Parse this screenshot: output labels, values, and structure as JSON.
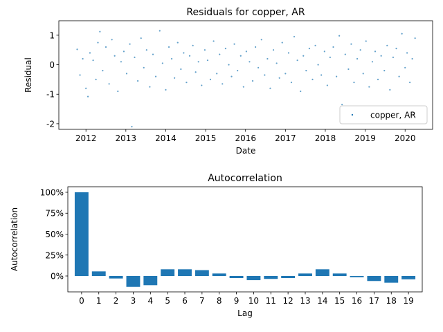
{
  "chart_data": [
    {
      "type": "scatter",
      "title": "Residuals for copper, AR",
      "xlabel": "Date",
      "ylabel": "Residual",
      "xlim": [
        2011.32,
        2020.69
      ],
      "ylim": [
        -2.19,
        1.49
      ],
      "xticks": [
        2012,
        2013,
        2014,
        2015,
        2016,
        2017,
        2018,
        2019,
        2020
      ],
      "yticks": [
        -2,
        -1,
        0,
        1
      ],
      "legend": "lower right",
      "series": [
        {
          "name": "copper, AR",
          "color": "#1f77b4",
          "x": [
            2011.78,
            2011.85,
            2011.92,
            2012.0,
            2012.05,
            2012.1,
            2012.18,
            2012.25,
            2012.3,
            2012.35,
            2012.42,
            2012.5,
            2012.58,
            2012.65,
            2012.72,
            2012.8,
            2012.88,
            2012.95,
            2013.02,
            2013.1,
            2013.15,
            2013.22,
            2013.3,
            2013.38,
            2013.45,
            2013.52,
            2013.6,
            2013.68,
            2013.75,
            2013.85,
            2013.92,
            2014.0,
            2014.08,
            2014.15,
            2014.22,
            2014.3,
            2014.38,
            2014.45,
            2014.52,
            2014.6,
            2014.68,
            2014.75,
            2014.82,
            2014.9,
            2014.98,
            2015.05,
            2015.12,
            2015.2,
            2015.28,
            2015.35,
            2015.42,
            2015.5,
            2015.58,
            2015.65,
            2015.72,
            2015.8,
            2015.88,
            2015.95,
            2016.02,
            2016.1,
            2016.18,
            2016.25,
            2016.32,
            2016.4,
            2016.48,
            2016.55,
            2016.62,
            2016.7,
            2016.78,
            2016.85,
            2016.92,
            2017.0,
            2017.08,
            2017.15,
            2017.22,
            2017.3,
            2017.38,
            2017.45,
            2017.52,
            2017.6,
            2017.68,
            2017.75,
            2017.82,
            2017.9,
            2017.98,
            2018.05,
            2018.12,
            2018.2,
            2018.28,
            2018.35,
            2018.42,
            2018.5,
            2018.58,
            2018.65,
            2018.72,
            2018.8,
            2018.88,
            2018.95,
            2019.02,
            2019.1,
            2019.18,
            2019.25,
            2019.32,
            2019.4,
            2019.48,
            2019.55,
            2019.62,
            2019.7,
            2019.78,
            2019.85,
            2019.92,
            2020.0,
            2020.05,
            2020.12,
            2020.18,
            2020.25
          ],
          "values": [
            0.52,
            -0.35,
            0.2,
            -0.8,
            -1.08,
            0.4,
            0.15,
            -0.5,
            0.75,
            1.12,
            -0.2,
            0.6,
            -0.65,
            0.85,
            0.3,
            -0.9,
            0.1,
            0.45,
            -0.3,
            0.7,
            -2.1,
            0.25,
            -0.55,
            0.9,
            -0.1,
            0.5,
            -0.75,
            0.35,
            -0.4,
            1.15,
            0.05,
            -0.85,
            0.6,
            0.2,
            -0.45,
            0.75,
            -0.15,
            0.4,
            -0.6,
            0.3,
            0.65,
            -0.25,
            0.1,
            -0.7,
            0.5,
            0.15,
            -0.5,
            0.8,
            -0.3,
            0.35,
            -0.65,
            0.55,
            0.0,
            -0.4,
            0.7,
            -0.2,
            0.3,
            -0.75,
            0.45,
            0.1,
            -0.55,
            0.6,
            -0.1,
            0.85,
            -0.35,
            0.2,
            -0.8,
            0.5,
            0.05,
            -0.45,
            0.75,
            -0.3,
            0.4,
            -0.6,
            0.95,
            0.15,
            -0.9,
            0.3,
            -0.2,
            0.55,
            -0.5,
            0.65,
            0.0,
            -0.35,
            0.45,
            -0.7,
            0.25,
            0.6,
            -0.4,
            0.98,
            -1.35,
            0.35,
            -0.15,
            0.7,
            -0.6,
            0.2,
            0.5,
            -0.3,
            0.8,
            -0.75,
            0.1,
            0.45,
            -0.5,
            0.3,
            -0.2,
            0.65,
            -0.85,
            0.25,
            0.55,
            -0.4,
            1.05,
            -0.1,
            0.4,
            -0.6,
            0.2,
            0.9
          ]
        }
      ]
    },
    {
      "type": "bar",
      "title": "Autocorrelation",
      "xlabel": "Lag",
      "ylabel": "Autocorrelation",
      "color": "#1f77b4",
      "xlim": [
        -0.8,
        19.8
      ],
      "ylim": [
        -19,
        106.6
      ],
      "xticks": [
        0,
        1,
        2,
        3,
        4,
        5,
        6,
        7,
        8,
        9,
        10,
        11,
        12,
        13,
        14,
        15,
        16,
        17,
        18,
        19
      ],
      "yticks": [
        {
          "value": 0,
          "label": "0%"
        },
        {
          "value": 25,
          "label": "25%"
        },
        {
          "value": 50,
          "label": "50%"
        },
        {
          "value": 75,
          "label": "75%"
        },
        {
          "value": 100,
          "label": "100%"
        }
      ],
      "x": [
        0,
        1,
        2,
        3,
        4,
        5,
        6,
        7,
        8,
        9,
        10,
        11,
        12,
        13,
        14,
        15,
        16,
        17,
        18,
        19
      ],
      "values": [
        100,
        5.5,
        -3,
        -13,
        -11,
        8,
        8,
        7,
        3,
        -2.5,
        -5,
        -3.5,
        -2.5,
        3,
        8,
        3,
        -1.5,
        -6,
        -8,
        -4
      ]
    }
  ]
}
